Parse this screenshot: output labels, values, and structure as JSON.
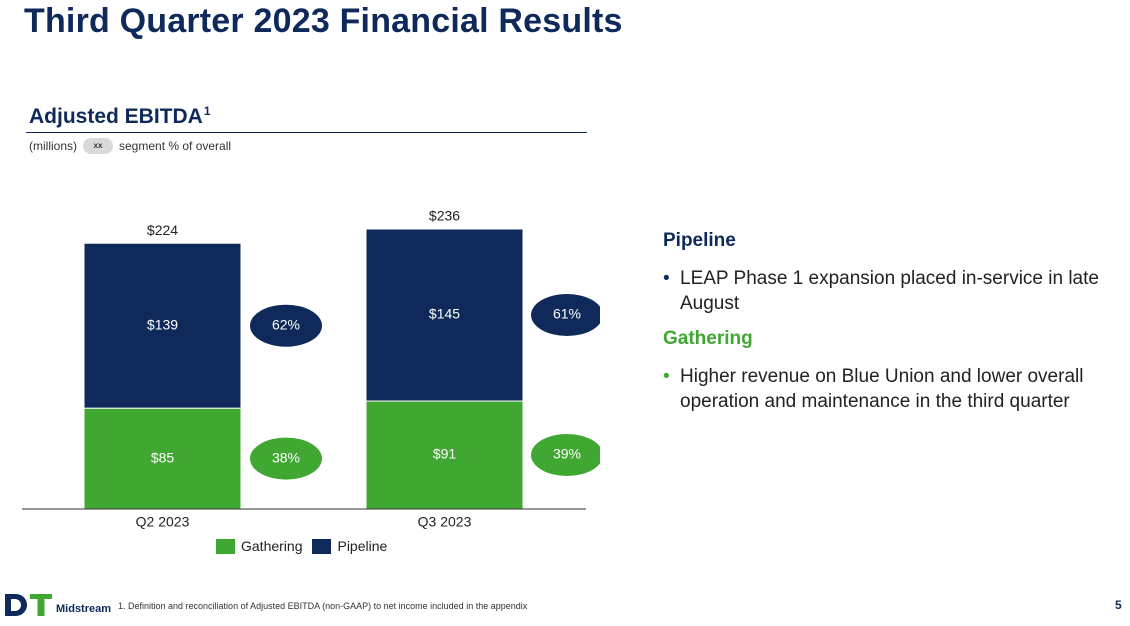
{
  "slide": {
    "title": "Third Quarter 2023 Financial Results",
    "page_number": "5"
  },
  "chart_section": {
    "heading": "Adjusted EBITDA",
    "heading_sup": "1",
    "units": "(millions)",
    "key_pill_text": "xx",
    "key_text": "segment % of overall"
  },
  "chart_data": {
    "type": "bar",
    "stacked": true,
    "categories": [
      "Q2 2023",
      "Q3 2023"
    ],
    "series": [
      {
        "name": "Gathering",
        "values": [
          85,
          91
        ],
        "labels": [
          "$85",
          "$91"
        ],
        "share_labels": [
          "38%",
          "39%"
        ],
        "color": "#40a832"
      },
      {
        "name": "Pipeline",
        "values": [
          139,
          145
        ],
        "labels": [
          "$139",
          "$145"
        ],
        "share_labels": [
          "62%",
          "61%"
        ],
        "color": "#0f2a5a"
      }
    ],
    "totals": [
      224,
      236
    ],
    "total_labels": [
      "$224",
      "$236"
    ],
    "ylim": [
      0,
      236
    ],
    "legend": "bottom",
    "grid": false
  },
  "right_panel": {
    "pipeline": {
      "title": "Pipeline",
      "bullets": [
        "LEAP Phase 1 expansion placed in-service in late August"
      ]
    },
    "gathering": {
      "title": "Gathering",
      "bullets": [
        "Higher revenue on Blue Union and lower overall operation and maintenance in the third quarter"
      ]
    }
  },
  "footer": {
    "logo_text": "Midstream",
    "footnote": "1.    Definition and reconciliation of Adjusted EBITDA (non-GAAP) to net income included in the appendix"
  },
  "colors": {
    "navy": "#0f2a5a",
    "green": "#40a832"
  }
}
